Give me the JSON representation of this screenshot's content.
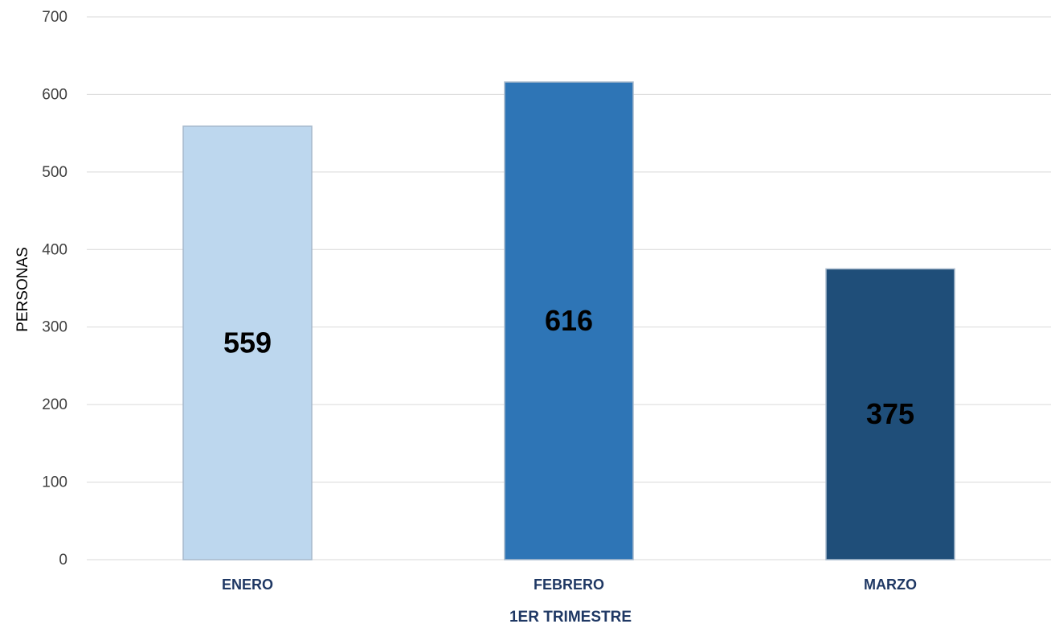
{
  "chart_data": {
    "type": "bar",
    "categories": [
      "ENERO",
      "FEBRERO",
      "MARZO"
    ],
    "values": [
      559,
      616,
      375
    ],
    "data_labels": [
      "559",
      "616",
      "375"
    ],
    "bar_colors": [
      "#bdd7ee",
      "#2e75b6",
      "#1f4e79"
    ],
    "bar_border_color": "#a6b8cc",
    "gridline_color": "#d9d9d9",
    "category_label_color": "#1f3864",
    "title": "",
    "xlabel": "1ER TRIMESTRE",
    "ylabel": "PERSONAS",
    "ylim": [
      0,
      700
    ],
    "yticks": [
      0,
      100,
      200,
      300,
      400,
      500,
      600,
      700
    ],
    "grid": true,
    "legend": "none"
  }
}
